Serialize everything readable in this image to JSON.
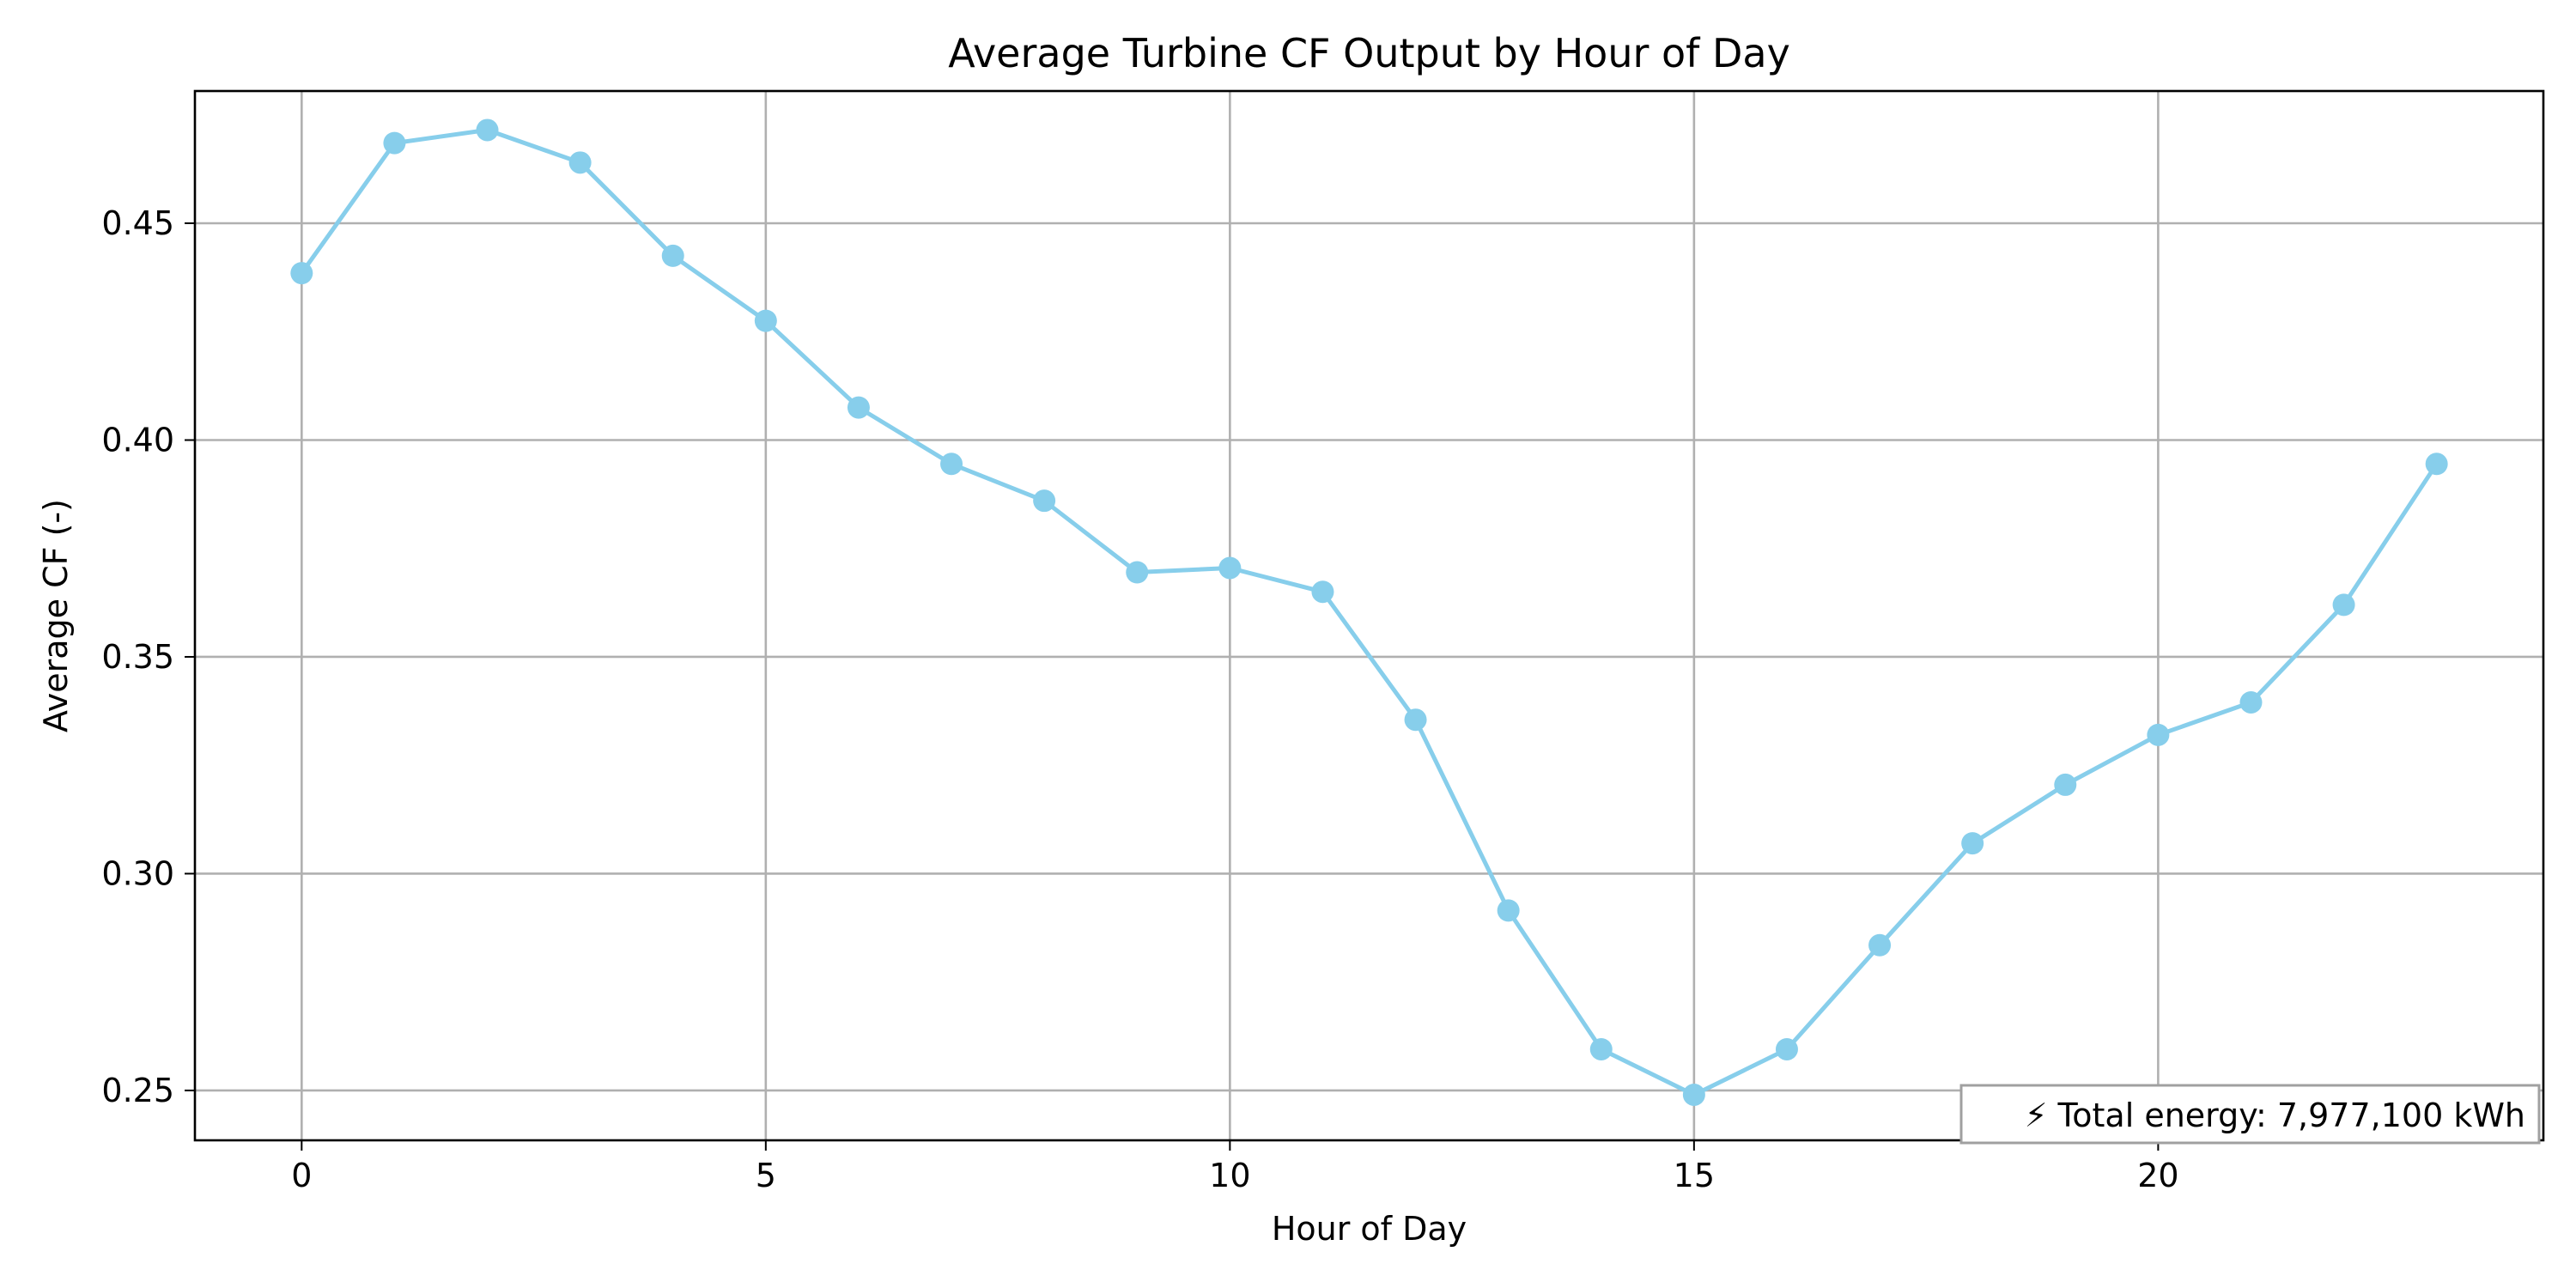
{
  "chart_data": {
    "type": "line",
    "title": "Average Turbine CF Output by Hour of Day",
    "xlabel": "Hour of Day",
    "ylabel": "Average CF (-)",
    "xlim": [
      -1.15,
      24.15
    ],
    "ylim": [
      0.2385,
      0.4805
    ],
    "x_ticks": [
      0,
      5,
      10,
      15,
      20
    ],
    "y_ticks": [
      0.25,
      0.3,
      0.35,
      0.4,
      0.45
    ],
    "y_tick_labels": [
      "0.25",
      "0.30",
      "0.35",
      "0.40",
      "0.45"
    ],
    "grid": true,
    "series": [
      {
        "color": "#87CEEB",
        "marker": "circle",
        "x": [
          0,
          1,
          2,
          3,
          4,
          5,
          6,
          7,
          8,
          9,
          10,
          11,
          12,
          13,
          14,
          15,
          16,
          17,
          18,
          19,
          20,
          21,
          22,
          23
        ],
        "y": [
          0.4385,
          0.4685,
          0.4715,
          0.464,
          0.4425,
          0.4275,
          0.4075,
          0.3945,
          0.386,
          0.3695,
          0.3705,
          0.365,
          0.3355,
          0.2915,
          0.2595,
          0.249,
          0.2595,
          0.2835,
          0.307,
          0.3205,
          0.332,
          0.3395,
          0.362,
          0.3945
        ]
      }
    ],
    "annotation": {
      "text": "⚡ Total energy: 7,977,100 kWh",
      "placement": "bottom-right"
    }
  }
}
